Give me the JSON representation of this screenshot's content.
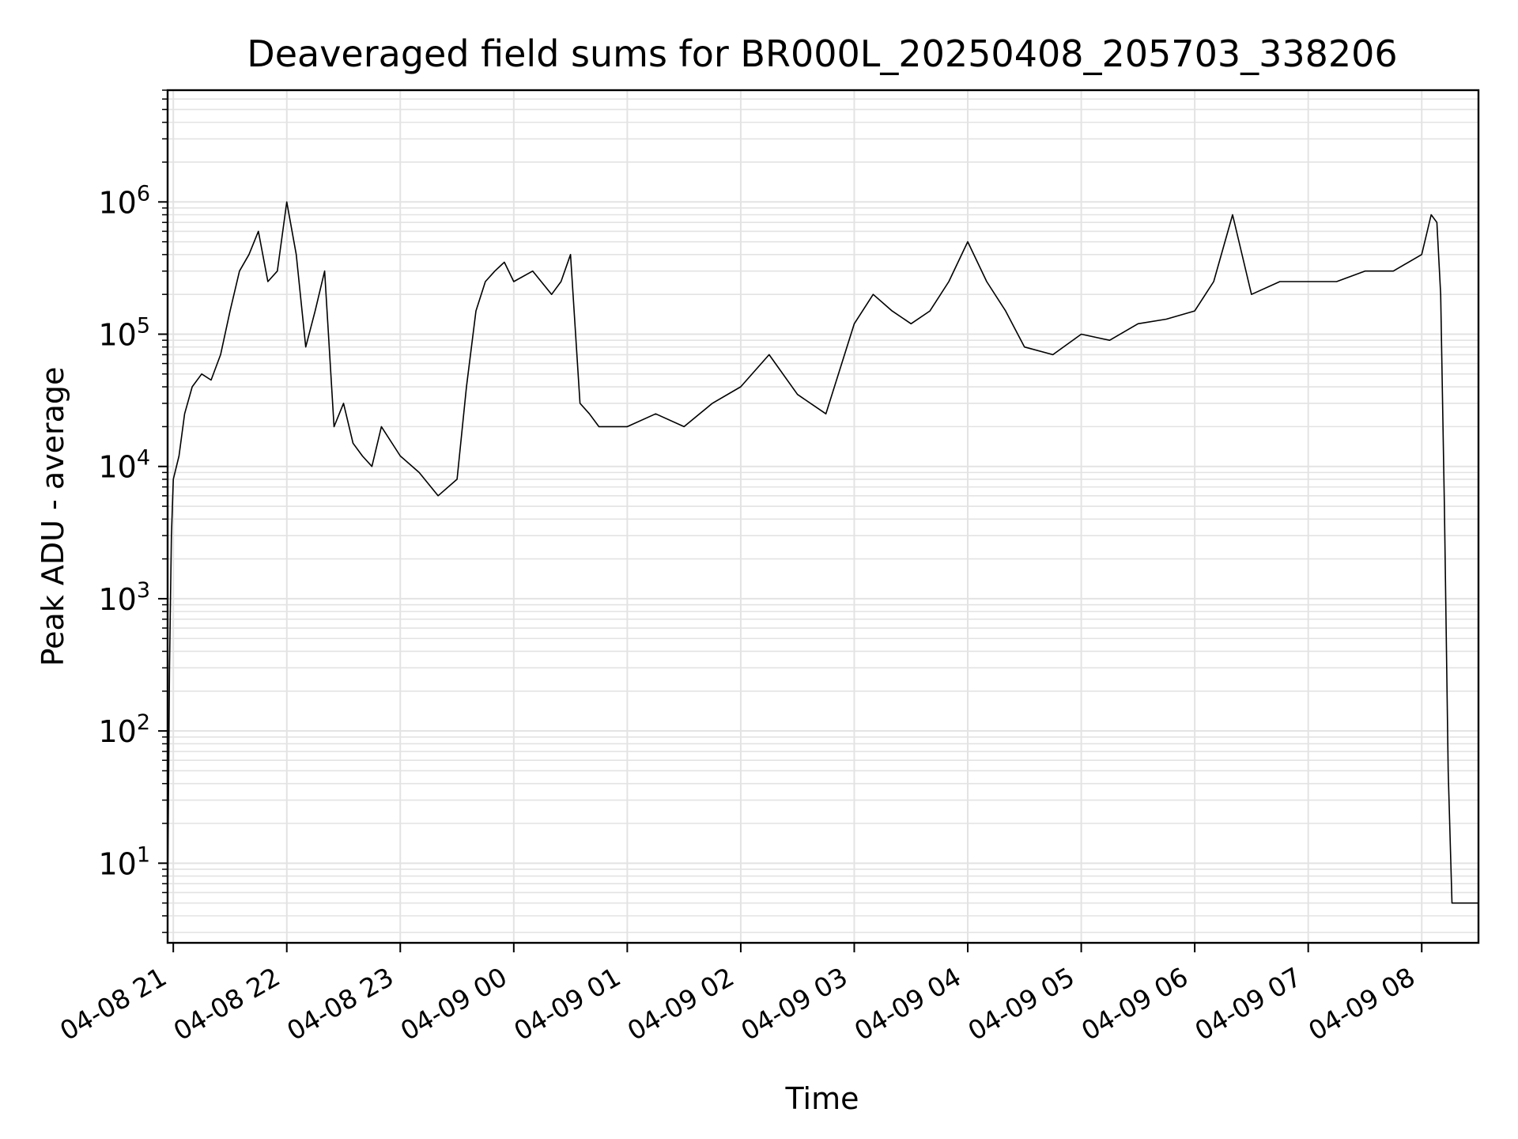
{
  "chart_data": {
    "type": "line",
    "title": "Deaveraged field sums for BR000L_20250408_205703_338206",
    "xlabel": "Time",
    "ylabel": "Peak ADU - average",
    "yscale": "log",
    "xlim": [
      "2025-04-08 20:57",
      "2025-04-09 08:30"
    ],
    "ylim": [
      2.5,
      7000000
    ],
    "grid": true,
    "grid_minor_y": true,
    "line_color": "#000000",
    "x_ticks": [
      {
        "t": "2025-04-08 21:00",
        "label": "04-08 21"
      },
      {
        "t": "2025-04-08 22:00",
        "label": "04-08 22"
      },
      {
        "t": "2025-04-08 23:00",
        "label": "04-08 23"
      },
      {
        "t": "2025-04-09 00:00",
        "label": "04-09 00"
      },
      {
        "t": "2025-04-09 01:00",
        "label": "04-09 01"
      },
      {
        "t": "2025-04-09 02:00",
        "label": "04-09 02"
      },
      {
        "t": "2025-04-09 03:00",
        "label": "04-09 03"
      },
      {
        "t": "2025-04-09 04:00",
        "label": "04-09 04"
      },
      {
        "t": "2025-04-09 05:00",
        "label": "04-09 05"
      },
      {
        "t": "2025-04-09 06:00",
        "label": "04-09 06"
      },
      {
        "t": "2025-04-09 07:00",
        "label": "04-09 07"
      },
      {
        "t": "2025-04-09 08:00",
        "label": "04-09 08"
      }
    ],
    "y_ticks": [
      {
        "value": 10,
        "label": "10",
        "exp": "1"
      },
      {
        "value": 100,
        "label": "10",
        "exp": "2"
      },
      {
        "value": 1000,
        "label": "10",
        "exp": "3"
      },
      {
        "value": 10000,
        "label": "10",
        "exp": "4"
      },
      {
        "value": 100000,
        "label": "10",
        "exp": "5"
      },
      {
        "value": 1000000,
        "label": "10",
        "exp": "6"
      }
    ],
    "series": [
      {
        "x": [
          "2025-04-08 20:57",
          "2025-04-08 20:58",
          "2025-04-08 20:59",
          "2025-04-08 21:00",
          "2025-04-08 21:03",
          "2025-04-08 21:06",
          "2025-04-08 21:10",
          "2025-04-08 21:15",
          "2025-04-08 21:20",
          "2025-04-08 21:25",
          "2025-04-08 21:30",
          "2025-04-08 21:35",
          "2025-04-08 21:40",
          "2025-04-08 21:45",
          "2025-04-08 21:50",
          "2025-04-08 21:55",
          "2025-04-08 22:00",
          "2025-04-08 22:05",
          "2025-04-08 22:10",
          "2025-04-08 22:15",
          "2025-04-08 22:20",
          "2025-04-08 22:25",
          "2025-04-08 22:30",
          "2025-04-08 22:35",
          "2025-04-08 22:40",
          "2025-04-08 22:45",
          "2025-04-08 22:50",
          "2025-04-08 23:00",
          "2025-04-08 23:10",
          "2025-04-08 23:20",
          "2025-04-08 23:30",
          "2025-04-08 23:35",
          "2025-04-08 23:40",
          "2025-04-08 23:45",
          "2025-04-08 23:50",
          "2025-04-08 23:55",
          "2025-04-09 00:00",
          "2025-04-09 00:10",
          "2025-04-09 00:20",
          "2025-04-09 00:25",
          "2025-04-09 00:30",
          "2025-04-09 00:35",
          "2025-04-09 00:40",
          "2025-04-09 00:45",
          "2025-04-09 01:00",
          "2025-04-09 01:15",
          "2025-04-09 01:30",
          "2025-04-09 01:45",
          "2025-04-09 02:00",
          "2025-04-09 02:15",
          "2025-04-09 02:30",
          "2025-04-09 02:45",
          "2025-04-09 03:00",
          "2025-04-09 03:10",
          "2025-04-09 03:20",
          "2025-04-09 03:30",
          "2025-04-09 03:40",
          "2025-04-09 03:50",
          "2025-04-09 04:00",
          "2025-04-09 04:10",
          "2025-04-09 04:20",
          "2025-04-09 04:30",
          "2025-04-09 04:45",
          "2025-04-09 05:00",
          "2025-04-09 05:15",
          "2025-04-09 05:30",
          "2025-04-09 05:45",
          "2025-04-09 06:00",
          "2025-04-09 06:10",
          "2025-04-09 06:20",
          "2025-04-09 06:30",
          "2025-04-09 06:45",
          "2025-04-09 07:00",
          "2025-04-09 07:15",
          "2025-04-09 07:30",
          "2025-04-09 07:45",
          "2025-04-09 08:00",
          "2025-04-09 08:05",
          "2025-04-09 08:08",
          "2025-04-09 08:10",
          "2025-04-09 08:12",
          "2025-04-09 08:14",
          "2025-04-09 08:16",
          "2025-04-09 08:18",
          "2025-04-09 08:30"
        ],
        "y": [
          5,
          300,
          3000,
          8000,
          12000,
          25000,
          40000,
          50000,
          45000,
          70000,
          150000,
          300000,
          400000,
          600000,
          250000,
          300000,
          1000000,
          400000,
          80000,
          150000,
          300000,
          20000,
          30000,
          15000,
          12000,
          10000,
          20000,
          12000,
          9000,
          6000,
          8000,
          40000,
          150000,
          250000,
          300000,
          350000,
          250000,
          300000,
          200000,
          250000,
          400000,
          30000,
          25000,
          20000,
          20000,
          25000,
          20000,
          30000,
          40000,
          70000,
          35000,
          25000,
          120000,
          200000,
          150000,
          120000,
          150000,
          250000,
          500000,
          250000,
          150000,
          80000,
          70000,
          100000,
          90000,
          120000,
          130000,
          150000,
          250000,
          800000,
          200000,
          250000,
          250000,
          250000,
          300000,
          300000,
          400000,
          800000,
          700000,
          200000,
          5000,
          50,
          5,
          5,
          5
        ]
      }
    ]
  }
}
